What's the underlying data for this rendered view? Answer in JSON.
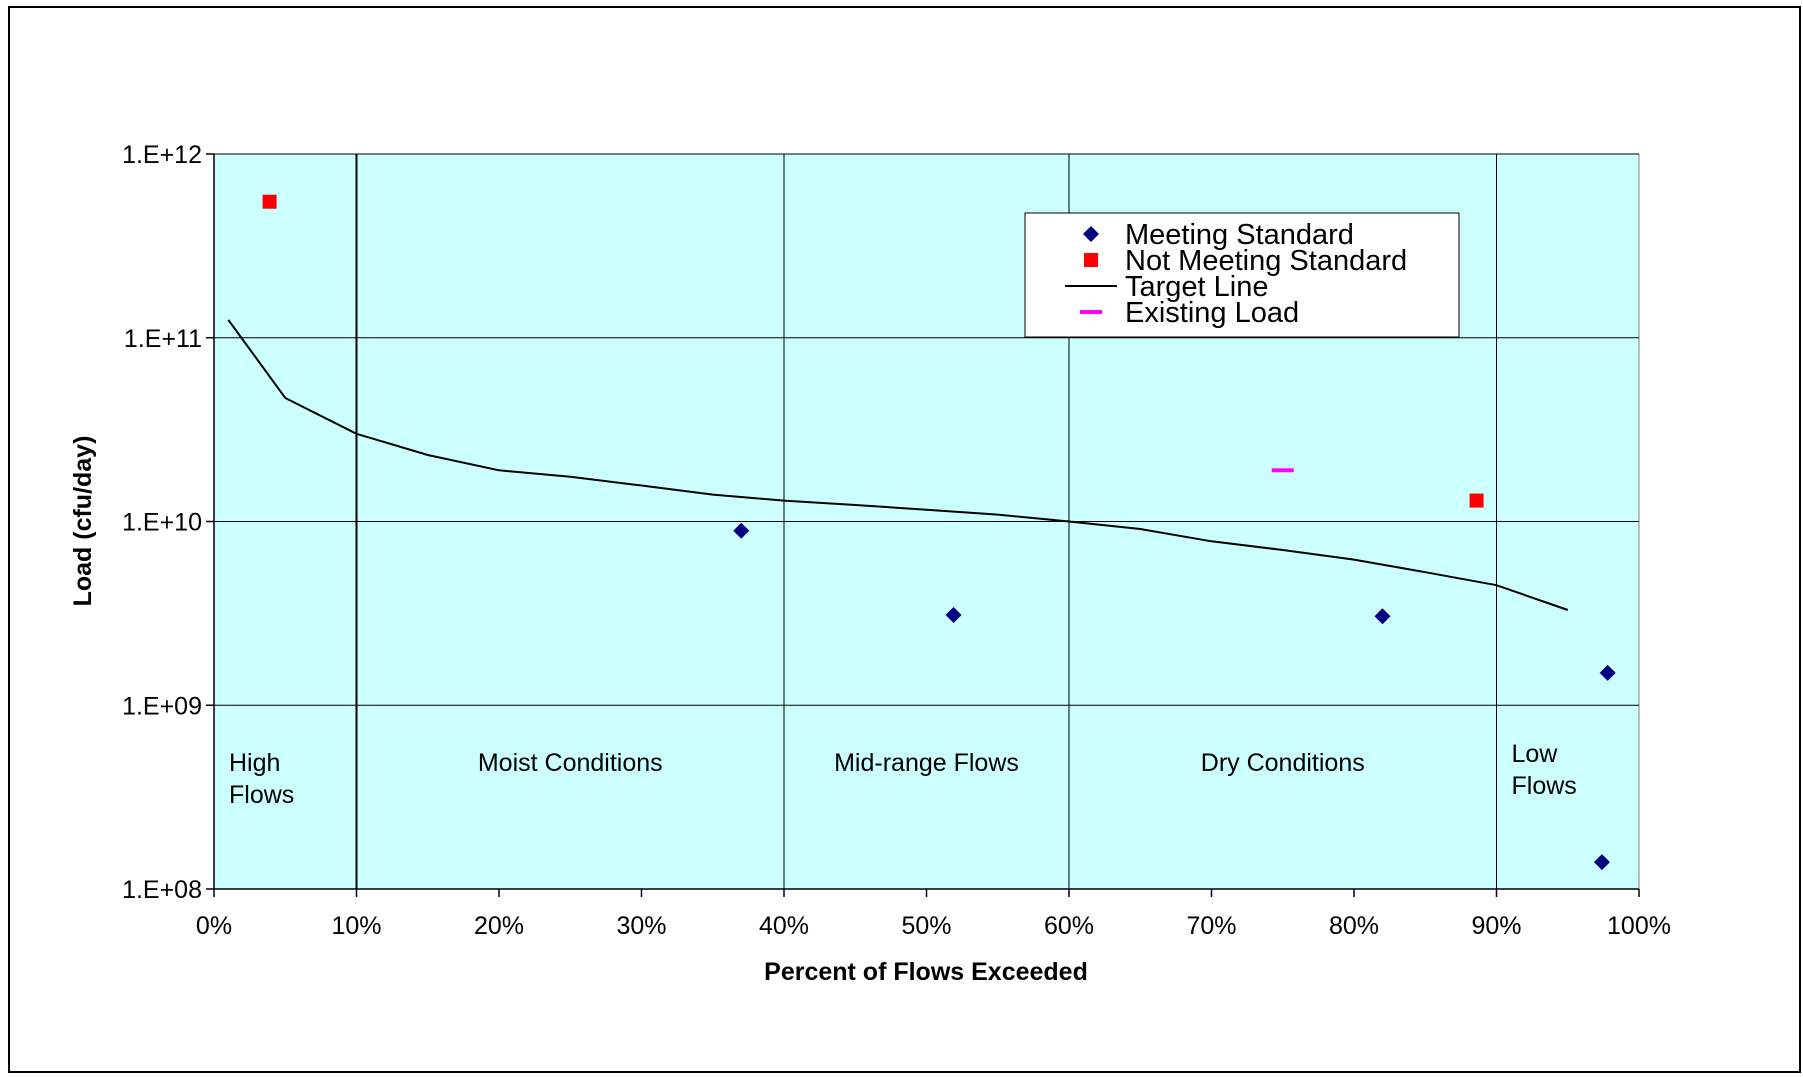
{
  "chart_data": {
    "type": "scatter",
    "title": "",
    "xlabel": "Percent of Flows Exceeded",
    "ylabel": "Load (cfu/day)",
    "xlim": [
      0,
      100
    ],
    "ylim": [
      100000000,
      1000000000000
    ],
    "y_scale": "log",
    "grid": true,
    "legend_position": "top-right",
    "x_ticks": [
      "0%",
      "10%",
      "20%",
      "30%",
      "40%",
      "50%",
      "60%",
      "70%",
      "80%",
      "90%",
      "100%"
    ],
    "y_ticks": [
      "1.E+08",
      "1.E+09",
      "1.E+10",
      "1.E+11",
      "1.E+12"
    ],
    "x_tick_values": [
      0,
      10,
      20,
      30,
      40,
      50,
      60,
      70,
      80,
      90,
      100
    ],
    "y_tick_values": [
      100000000,
      1000000000,
      10000000000,
      100000000000,
      1000000000000
    ],
    "zone_boundaries": [
      10,
      40,
      60,
      90
    ],
    "zones": [
      {
        "label": "High\nFlows",
        "x": 5
      },
      {
        "label": "Moist Conditions",
        "x": 25
      },
      {
        "label": "Mid-range Flows",
        "x": 50
      },
      {
        "label": "Dry Conditions",
        "x": 75
      },
      {
        "label": "Low\nFlows",
        "x": 95
      }
    ],
    "series": [
      {
        "name": "Meeting Standard",
        "marker": "diamond",
        "color": "#000080",
        "points": [
          [
            37,
            8900000000
          ],
          [
            51.9,
            3100000000
          ],
          [
            82,
            3050000000
          ],
          [
            97.8,
            1500000000
          ],
          [
            97.4,
            140000000
          ]
        ]
      },
      {
        "name": "Not Meeting Standard",
        "marker": "square",
        "color": "#ff0000",
        "points": [
          [
            3.9,
            550000000000
          ],
          [
            88.6,
            13000000000
          ]
        ]
      },
      {
        "name": "Target Line",
        "marker": "line",
        "color": "#000000",
        "points": [
          [
            1,
            125000000000
          ],
          [
            5,
            47000000000
          ],
          [
            10,
            30000000000
          ],
          [
            15,
            23000000000
          ],
          [
            20,
            19000000000
          ],
          [
            25,
            17500000000
          ],
          [
            30,
            15700000000
          ],
          [
            35,
            14000000000
          ],
          [
            40,
            13000000000
          ],
          [
            45,
            12300000000
          ],
          [
            50,
            11600000000
          ],
          [
            55,
            10900000000
          ],
          [
            60,
            10000000000
          ],
          [
            65,
            9100000000
          ],
          [
            70,
            7800000000
          ],
          [
            75,
            7000000000
          ],
          [
            80,
            6200000000
          ],
          [
            85,
            5300000000
          ],
          [
            90,
            4500000000
          ],
          [
            95,
            3300000000
          ]
        ]
      },
      {
        "name": "Existing Load",
        "marker": "dash",
        "color": "#ff00ff",
        "points": [
          [
            75,
            19000000000
          ]
        ]
      }
    ]
  },
  "colors": {
    "plot_background": "#ccffff",
    "gridline": "#000000"
  }
}
